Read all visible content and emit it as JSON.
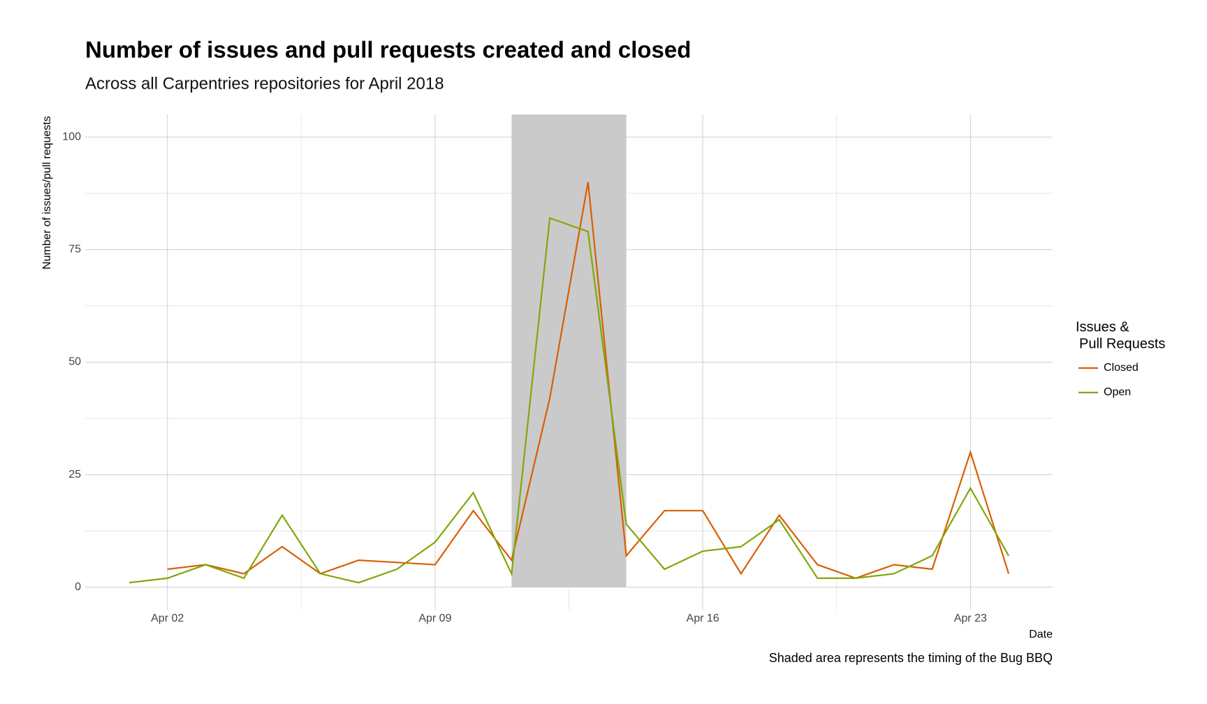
{
  "chart_data": {
    "type": "line",
    "title": "Number of issues and pull requests created and closed",
    "subtitle": "Across all Carpentries repositories for April 2018",
    "x_label": "Date",
    "y_label": "Number of issues/pull requests",
    "caption": "Shaded area represents the timing of the Bug BBQ",
    "legend_title": [
      "Issues &",
      "Pull Requests"
    ],
    "x": [
      "Apr 01",
      "Apr 02",
      "Apr 03",
      "Apr 04",
      "Apr 05",
      "Apr 06",
      "Apr 07",
      "Apr 08",
      "Apr 09",
      "Apr 10",
      "Apr 11",
      "Apr 12",
      "Apr 13",
      "Apr 14",
      "Apr 15",
      "Apr 16",
      "Apr 17",
      "Apr 18",
      "Apr 19",
      "Apr 20",
      "Apr 21",
      "Apr 22",
      "Apr 23",
      "Apr 24"
    ],
    "series": [
      {
        "name": "Closed",
        "color": "#d95f02",
        "values": [
          null,
          4,
          5,
          3,
          9,
          3,
          6,
          5.5,
          5,
          17,
          6,
          42,
          90,
          7,
          17,
          17,
          3,
          16,
          5,
          2,
          5,
          4,
          30,
          3
        ]
      },
      {
        "name": "Open",
        "color": "#7fa80a",
        "values": [
          1,
          2,
          5,
          2,
          16,
          3,
          1,
          4,
          10,
          21,
          3,
          82,
          79,
          14,
          4,
          8,
          9,
          15,
          2,
          2,
          3,
          7,
          22,
          7
        ]
      }
    ],
    "shade": {
      "start": "Apr 11",
      "end": "Apr 14",
      "color": "#cacaca"
    },
    "xticks": [
      "Apr 02",
      "Apr 09",
      "Apr 16",
      "Apr 23"
    ],
    "ylim": [
      -5,
      105
    ],
    "yticks": [
      0,
      25,
      50,
      75,
      100
    ],
    "grid": true,
    "legend_position": "right"
  }
}
